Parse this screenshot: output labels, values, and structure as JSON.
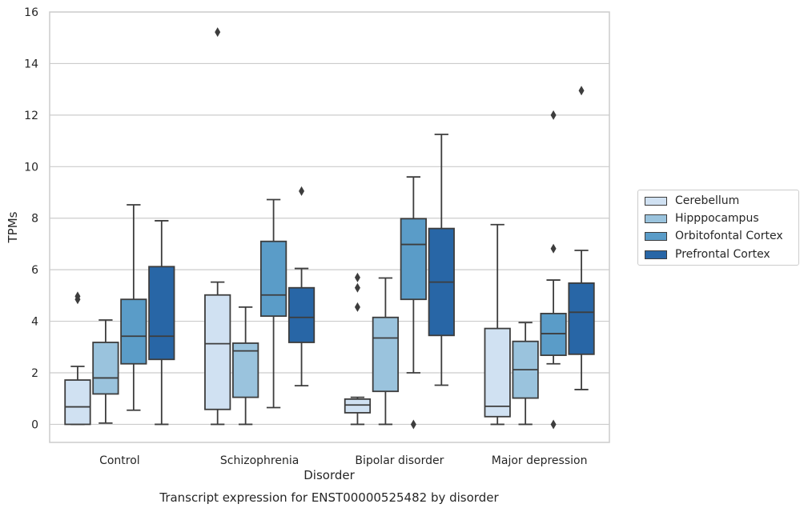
{
  "chart_data": {
    "type": "boxplot",
    "title": "Transcript expression for ENST00000525482 by disorder",
    "xlabel": "Disorder",
    "ylabel": "TPMs",
    "ylim": [
      -0.7,
      16
    ],
    "yticks": [
      0,
      2,
      4,
      6,
      8,
      10,
      12,
      14,
      16
    ],
    "grid": true,
    "legend_position": "right",
    "categories": [
      "Control",
      "Schizophrenia",
      "Bipolar disorder",
      "Major depression"
    ],
    "series": [
      {
        "name": "Cerebellum",
        "color": "#d0e1f2",
        "boxes": [
          {
            "whisker_low": 0.0,
            "q1": 0.0,
            "median": 0.68,
            "q3": 1.72,
            "whisker_high": 2.25,
            "outliers": [
              4.85,
              4.97
            ]
          },
          {
            "whisker_low": 0.0,
            "q1": 0.58,
            "median": 3.13,
            "q3": 5.02,
            "whisker_high": 5.52,
            "outliers": [
              15.22
            ]
          },
          {
            "whisker_low": 0.0,
            "q1": 0.45,
            "median": 0.75,
            "q3": 0.98,
            "whisker_high": 1.05,
            "outliers": [
              4.55,
              5.3,
              5.7
            ]
          },
          {
            "whisker_low": 0.0,
            "q1": 0.3,
            "median": 0.7,
            "q3": 3.72,
            "whisker_high": 7.75,
            "outliers": []
          }
        ]
      },
      {
        "name": "Hipppocampus",
        "color": "#9ac3dd",
        "boxes": [
          {
            "whisker_low": 0.05,
            "q1": 1.18,
            "median": 1.8,
            "q3": 3.18,
            "whisker_high": 4.05,
            "outliers": []
          },
          {
            "whisker_low": 0.0,
            "q1": 1.05,
            "median": 2.85,
            "q3": 3.15,
            "whisker_high": 4.55,
            "outliers": []
          },
          {
            "whisker_low": 0.0,
            "q1": 1.28,
            "median": 3.35,
            "q3": 4.15,
            "whisker_high": 5.68,
            "outliers": []
          },
          {
            "whisker_low": 0.0,
            "q1": 1.02,
            "median": 2.12,
            "q3": 3.22,
            "whisker_high": 3.95,
            "outliers": []
          }
        ]
      },
      {
        "name": "Orbitofontal Cortex",
        "color": "#5a9cc8",
        "boxes": [
          {
            "whisker_low": 0.55,
            "q1": 2.35,
            "median": 3.42,
            "q3": 4.85,
            "whisker_high": 8.52,
            "outliers": []
          },
          {
            "whisker_low": 0.65,
            "q1": 4.2,
            "median": 5.02,
            "q3": 7.1,
            "whisker_high": 8.72,
            "outliers": []
          },
          {
            "whisker_low": 2.0,
            "q1": 4.85,
            "median": 6.98,
            "q3": 7.98,
            "whisker_high": 9.6,
            "outliers": [
              0.0
            ]
          },
          {
            "whisker_low": 2.35,
            "q1": 2.68,
            "median": 3.52,
            "q3": 4.3,
            "whisker_high": 5.6,
            "outliers": [
              0.0,
              6.82,
              12.0
            ]
          }
        ]
      },
      {
        "name": "Prefrontal Cortex",
        "color": "#2866a6",
        "boxes": [
          {
            "whisker_low": 0.0,
            "q1": 2.52,
            "median": 3.42,
            "q3": 6.12,
            "whisker_high": 7.9,
            "outliers": []
          },
          {
            "whisker_low": 1.5,
            "q1": 3.18,
            "median": 4.15,
            "q3": 5.3,
            "whisker_high": 6.05,
            "outliers": [
              9.05
            ]
          },
          {
            "whisker_low": 1.52,
            "q1": 3.45,
            "median": 5.52,
            "q3": 7.6,
            "whisker_high": 11.25,
            "outliers": []
          },
          {
            "whisker_low": 1.35,
            "q1": 2.72,
            "median": 4.35,
            "q3": 5.48,
            "whisker_high": 6.75,
            "outliers": [
              12.95
            ]
          }
        ]
      }
    ]
  }
}
